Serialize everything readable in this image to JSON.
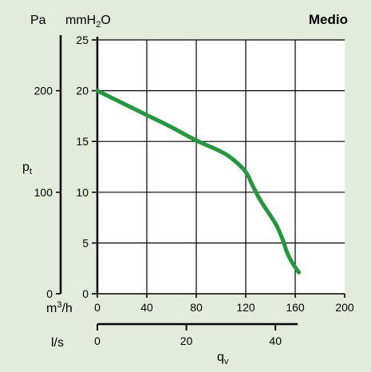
{
  "header": {
    "pa_label": "Pa",
    "mmh2o_label": "mmH",
    "mmh2o_sub": "2",
    "mmh2o_tail": "O",
    "title": "Medio"
  },
  "axis_labels": {
    "pt_main": "p",
    "pt_sub": "t",
    "m3h_main": "m",
    "m3h_sup": "3",
    "m3h_tail": "/h",
    "ls": "l/s",
    "qv_main": "q",
    "qv_sub": "v"
  },
  "colors": {
    "background": "#e3ecdb",
    "curve": "#1e9a3a"
  },
  "chart_data": {
    "type": "line",
    "title": "Medio",
    "x_axis": {
      "unit": "m3/h",
      "range": [
        0,
        200
      ],
      "ticks": [
        0,
        40,
        80,
        120,
        160,
        200
      ]
    },
    "y_axis": {
      "unit": "mmH2O",
      "range": [
        0,
        25
      ],
      "ticks": [
        0,
        5,
        10,
        15,
        20,
        25
      ]
    },
    "y_axis_secondary": {
      "unit": "Pa",
      "range": [
        0,
        250
      ],
      "ticks": [
        0,
        100,
        200
      ]
    },
    "x_axis_secondary": {
      "unit": "l/s",
      "ticks": [
        0,
        20,
        40
      ]
    },
    "grid": true,
    "series": [
      {
        "x": [
          0,
          20,
          40,
          60,
          80,
          100,
          110,
          120,
          125,
          130,
          135,
          140,
          145,
          150,
          153,
          156,
          160,
          163
        ],
        "y": [
          20.0,
          18.8,
          17.6,
          16.4,
          15.1,
          14.0,
          13.2,
          12.0,
          10.8,
          9.6,
          8.6,
          7.7,
          6.7,
          5.3,
          4.2,
          3.4,
          2.6,
          2.1
        ]
      }
    ]
  }
}
